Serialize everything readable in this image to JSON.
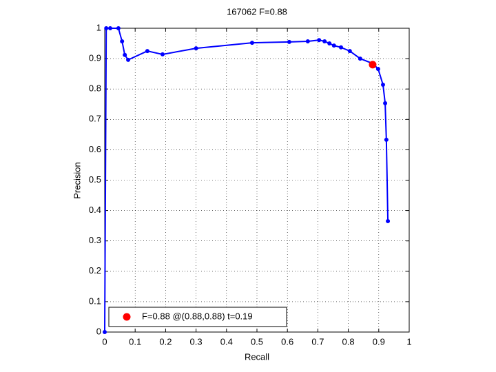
{
  "chart_data": {
    "type": "line",
    "title": "167062 F=0.88",
    "xlabel": "Recall",
    "ylabel": "Precision",
    "xlim": [
      0,
      1
    ],
    "ylim": [
      0,
      1
    ],
    "xticks": [
      0,
      0.1,
      0.2,
      0.3,
      0.4,
      0.5,
      0.6,
      0.7,
      0.8,
      0.9,
      1
    ],
    "yticks": [
      0,
      0.1,
      0.2,
      0.3,
      0.4,
      0.5,
      0.6,
      0.7,
      0.8,
      0.9,
      1
    ],
    "grid": true,
    "legend": "lower left",
    "series": [
      {
        "color": "#0000ff",
        "x": [
          0,
          0.005,
          0.018,
          0.045,
          0.057,
          0.066,
          0.077,
          0.14,
          0.19,
          0.3,
          0.484,
          0.606,
          0.667,
          0.704,
          0.722,
          0.738,
          0.753,
          0.776,
          0.805,
          0.839,
          0.88,
          0.898,
          0.914,
          0.921,
          0.925,
          0.93
        ],
        "y": [
          0,
          1,
          1,
          1,
          0.957,
          0.912,
          0.896,
          0.925,
          0.914,
          0.934,
          0.952,
          0.955,
          0.957,
          0.961,
          0.957,
          0.95,
          0.943,
          0.937,
          0.925,
          0.9,
          0.884,
          0.866,
          0.814,
          0.753,
          0.633,
          0.365
        ]
      },
      {
        "name": "F=0.88 @(0.88,0.88) t=0.19",
        "color": "#ff0000",
        "x": [
          0.88
        ],
        "y": [
          0.88
        ]
      }
    ]
  }
}
